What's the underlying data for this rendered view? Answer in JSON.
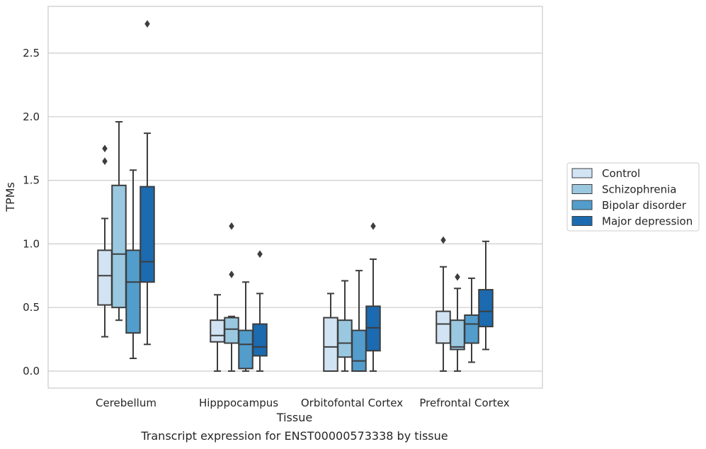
{
  "chart_data": {
    "type": "box",
    "caption": "Transcript expression for ENST00000573338 by tissue",
    "xlabel": "Tissue",
    "ylabel": "TPMs",
    "ylim": [
      -0.13,
      2.88
    ],
    "yticks": [
      "0.0",
      "0.5",
      "1.0",
      "1.5",
      "2.0",
      "2.5"
    ],
    "ytick_values": [
      0,
      0.5,
      1.0,
      1.5,
      2.0,
      2.5
    ],
    "grid": "horizontal",
    "legend_position": "right",
    "categories": [
      "Cerebellum",
      "Hipppocampus",
      "Orbitofontal Cortex",
      "Prefrontal Cortex"
    ],
    "series": [
      {
        "name": "Control",
        "color": "#d2e3f3",
        "boxes": [
          {
            "whisker_low": 0.27,
            "q1": 0.52,
            "median": 0.75,
            "q3": 0.95,
            "whisker_high": 1.2,
            "outliers": [
              1.65,
              1.75
            ]
          },
          {
            "whisker_low": 0.0,
            "q1": 0.23,
            "median": 0.28,
            "q3": 0.4,
            "whisker_high": 0.6,
            "outliers": []
          },
          {
            "whisker_low": 0.0,
            "q1": 0.0,
            "median": 0.19,
            "q3": 0.42,
            "whisker_high": 0.61,
            "outliers": []
          },
          {
            "whisker_low": 0.0,
            "q1": 0.22,
            "median": 0.37,
            "q3": 0.47,
            "whisker_high": 0.82,
            "outliers": [
              1.03
            ]
          }
        ]
      },
      {
        "name": "Schizophrenia",
        "color": "#9ac8e0",
        "boxes": [
          {
            "whisker_low": 0.4,
            "q1": 0.5,
            "median": 0.92,
            "q3": 1.46,
            "whisker_high": 1.96,
            "outliers": []
          },
          {
            "whisker_low": 0.0,
            "q1": 0.22,
            "median": 0.33,
            "q3": 0.42,
            "whisker_high": 0.43,
            "outliers": [
              0.76,
              1.14
            ]
          },
          {
            "whisker_low": 0.0,
            "q1": 0.11,
            "median": 0.22,
            "q3": 0.4,
            "whisker_high": 0.71,
            "outliers": []
          },
          {
            "whisker_low": 0.0,
            "q1": 0.17,
            "median": 0.19,
            "q3": 0.4,
            "whisker_high": 0.65,
            "outliers": [
              0.74
            ]
          }
        ]
      },
      {
        "name": "Bipolar disorder",
        "color": "#529dcc",
        "boxes": [
          {
            "whisker_low": 0.1,
            "q1": 0.3,
            "median": 0.7,
            "q3": 0.95,
            "whisker_high": 1.58,
            "outliers": []
          },
          {
            "whisker_low": 0.0,
            "q1": 0.02,
            "median": 0.21,
            "q3": 0.32,
            "whisker_high": 0.7,
            "outliers": []
          },
          {
            "whisker_low": 0.0,
            "q1": 0.0,
            "median": 0.08,
            "q3": 0.32,
            "whisker_high": 0.79,
            "outliers": []
          },
          {
            "whisker_low": 0.07,
            "q1": 0.22,
            "median": 0.37,
            "q3": 0.44,
            "whisker_high": 0.73,
            "outliers": []
          }
        ]
      },
      {
        "name": "Major depression",
        "color": "#1c6aaf",
        "boxes": [
          {
            "whisker_low": 0.21,
            "q1": 0.7,
            "median": 0.86,
            "q3": 1.45,
            "whisker_high": 1.87,
            "outliers": [
              2.73
            ]
          },
          {
            "whisker_low": 0.0,
            "q1": 0.12,
            "median": 0.19,
            "q3": 0.37,
            "whisker_high": 0.61,
            "outliers": [
              0.92
            ]
          },
          {
            "whisker_low": 0.0,
            "q1": 0.16,
            "median": 0.34,
            "q3": 0.51,
            "whisker_high": 0.88,
            "outliers": [
              1.14
            ]
          },
          {
            "whisker_low": 0.17,
            "q1": 0.35,
            "median": 0.47,
            "q3": 0.64,
            "whisker_high": 1.02,
            "outliers": []
          }
        ]
      }
    ]
  }
}
